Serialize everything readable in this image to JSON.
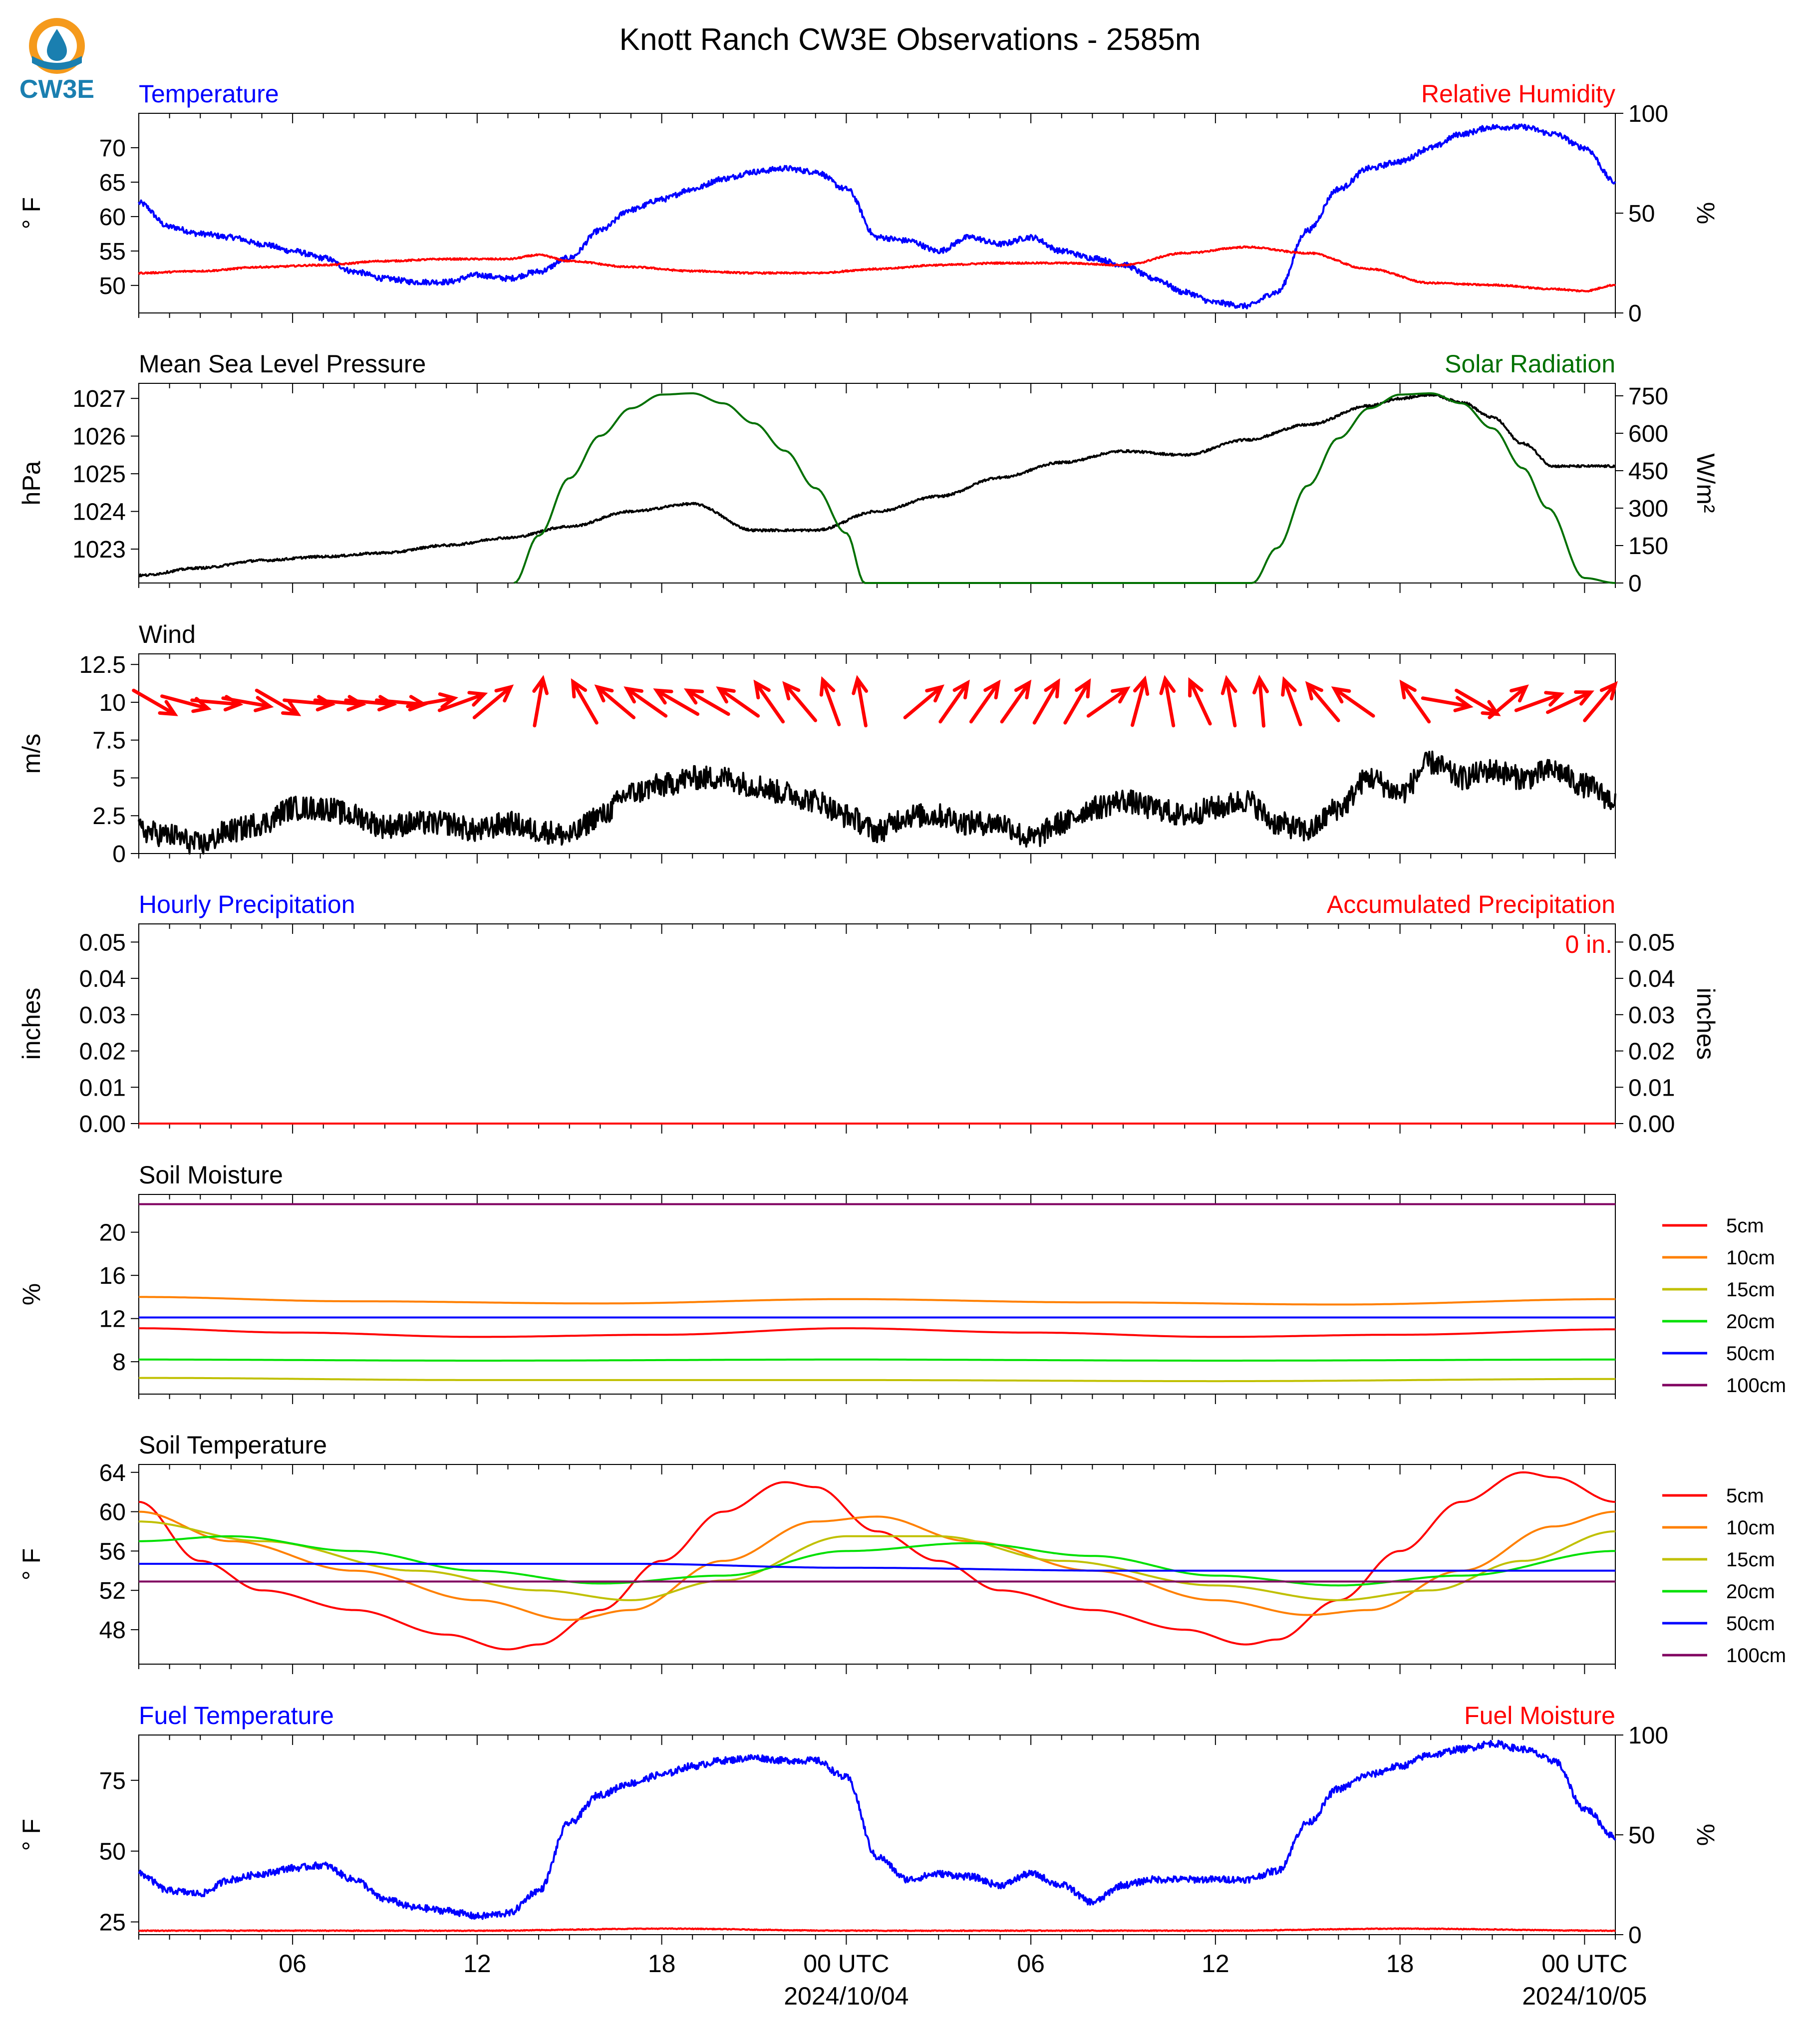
{
  "figure": {
    "title": "Knott Ranch CW3E Observations - 2585m",
    "logo_text": "CW3E",
    "x_ticks": [
      "06",
      "12",
      "18",
      "00 UTC",
      "06",
      "12",
      "18",
      "00 UTC"
    ],
    "x_tick_hours": [
      6,
      12,
      18,
      24,
      30,
      36,
      42,
      48
    ],
    "date_labels": [
      {
        "hour": 24,
        "text": "2024/10/04"
      },
      {
        "hour": 48,
        "text": "2024/10/05"
      }
    ],
    "x_range_hours": [
      1,
      49
    ]
  },
  "colors": {
    "blue": "#0000ff",
    "red": "#ff0000",
    "green": "#007000",
    "black": "#000000",
    "orange": "#ff8000",
    "olive": "#c0c000",
    "lime": "#00e000",
    "purple": "#800060"
  },
  "chart_data": [
    {
      "type": "line",
      "name": "temperature_humidity",
      "title_left": "Temperature",
      "title_right": "Relative Humidity",
      "ylabel_left": "° F",
      "ylabel_right": "%",
      "ylim_left": [
        46,
        75
      ],
      "ylim_right": [
        0,
        100
      ],
      "yticks_left": [
        50,
        55,
        60,
        65,
        70
      ],
      "yticks_right": [
        0,
        50,
        100
      ],
      "series": [
        {
          "axis": "left",
          "color": "blue",
          "x": [
            1,
            2,
            3,
            4,
            5,
            6,
            7,
            8,
            9,
            10,
            11,
            12,
            13,
            14,
            15,
            16,
            17,
            18,
            19,
            20,
            21,
            22,
            23,
            24,
            25,
            26,
            27,
            28,
            29,
            30,
            31,
            32,
            33,
            34,
            35,
            36,
            37,
            38,
            39,
            40,
            41,
            42,
            43,
            44,
            45,
            46,
            47,
            48,
            49
          ],
          "values": [
            62,
            58.5,
            57.5,
            57,
            56,
            55,
            54,
            52,
            51,
            50.5,
            50.5,
            51.5,
            51,
            52,
            54,
            58,
            61,
            62.5,
            64,
            65.5,
            66.5,
            67,
            66.5,
            64,
            57,
            56.5,
            55,
            57,
            56,
            57,
            55,
            54,
            53,
            51,
            49,
            47.5,
            47,
            49,
            58,
            64,
            67,
            68,
            70,
            72,
            73,
            73,
            72,
            70,
            65
          ]
        },
        {
          "axis": "right",
          "color": "red",
          "x": [
            1,
            3,
            5,
            7,
            9,
            11,
            13,
            14,
            15,
            17,
            19,
            21,
            23,
            25,
            27,
            29,
            31,
            33,
            35,
            37,
            39,
            41,
            43,
            45,
            47,
            48,
            49
          ],
          "values": [
            20,
            21,
            23,
            24,
            26,
            27,
            27,
            29,
            26,
            23,
            21,
            20,
            20,
            22,
            24,
            25,
            25,
            24,
            30,
            33,
            30,
            22,
            15,
            14,
            12,
            11,
            14
          ]
        }
      ]
    },
    {
      "type": "line",
      "name": "pressure_solar",
      "title_left": "Mean Sea Level Pressure",
      "title_right": "Solar Radiation",
      "ylabel_left": "hPa",
      "ylabel_right": "W/m²",
      "ylim_left": [
        1022.1,
        1027.4
      ],
      "ylim_right": [
        0,
        800
      ],
      "yticks_left": [
        1023,
        1024,
        1025,
        1026,
        1027
      ],
      "yticks_right": [
        0,
        150,
        300,
        450,
        600,
        750
      ],
      "series": [
        {
          "axis": "left",
          "color": "black",
          "x": [
            1,
            3,
            5,
            7,
            9,
            11,
            13,
            15,
            17,
            19,
            21,
            23,
            25,
            27,
            29,
            31,
            33,
            35,
            37,
            39,
            41,
            42,
            43,
            44,
            45,
            46,
            47,
            48,
            49
          ],
          "values": [
            1022.3,
            1022.5,
            1022.7,
            1022.8,
            1022.9,
            1023.1,
            1023.3,
            1023.6,
            1024,
            1024.2,
            1023.5,
            1023.5,
            1024,
            1024.4,
            1024.9,
            1025.3,
            1025.6,
            1025.5,
            1025.9,
            1026.3,
            1026.8,
            1027,
            1027.1,
            1026.9,
            1026.5,
            1025.8,
            1025.2,
            1025.2,
            1025.2
          ]
        },
        {
          "axis": "right",
          "color": "green",
          "x": [
            13.2,
            14,
            15,
            16,
            17,
            18,
            19,
            20,
            21,
            22,
            23,
            24,
            24.6,
            37.2,
            38,
            39,
            40,
            41,
            42,
            43,
            44,
            45,
            46,
            46.8,
            48,
            49
          ],
          "values": [
            0,
            190,
            420,
            590,
            700,
            755,
            760,
            720,
            640,
            530,
            380,
            200,
            0,
            0,
            140,
            390,
            580,
            700,
            755,
            760,
            720,
            620,
            460,
            300,
            20,
            0
          ]
        }
      ]
    },
    {
      "type": "line",
      "name": "wind",
      "title_left": "Wind",
      "ylabel_left": "m/s",
      "ylim_left": [
        0,
        13.2
      ],
      "yticks_left": [
        0.0,
        2.5,
        5.0,
        7.5,
        10.0,
        12.5
      ],
      "series": [
        {
          "axis": "left",
          "color": "black",
          "x": [
            1,
            2,
            3,
            4,
            5,
            6,
            7,
            8,
            9,
            10,
            11,
            12,
            13,
            14,
            15,
            16,
            17,
            18,
            19,
            20,
            21,
            22,
            23,
            24,
            25,
            26,
            27,
            28,
            29,
            30,
            31,
            32,
            33,
            34,
            35,
            36,
            37,
            38,
            39,
            40,
            41,
            42,
            43,
            44,
            45,
            46,
            47,
            48,
            49
          ],
          "values": [
            1.5,
            1.2,
            0.6,
            1.5,
            2,
            3,
            3,
            2.5,
            1.8,
            2,
            2,
            1.5,
            2,
            1.5,
            1.2,
            2.5,
            4,
            4.5,
            5,
            5,
            4.5,
            4,
            3.5,
            2.5,
            1.5,
            2.5,
            2.5,
            2,
            2,
            1,
            2,
            3,
            3.5,
            3,
            2.5,
            3,
            3.5,
            2,
            1.5,
            3,
            5,
            4,
            6,
            5,
            5.5,
            5,
            5.5,
            4.5,
            3.5
          ]
        }
      ],
      "barbs_hours": [
        1.5,
        2.5,
        3.5,
        4.5,
        5.5,
        6.5,
        7.5,
        8.5,
        9.5,
        10.5,
        11.5,
        12.5,
        14,
        15.5,
        16.5,
        17.5,
        18.5,
        19.5,
        20.5,
        21.5,
        22.5,
        23.5,
        24.5,
        26.5,
        27.5,
        28.5,
        29.5,
        30.5,
        31.5,
        32.5,
        33.5,
        34.5,
        35.5,
        36.5,
        37.5,
        38.5,
        39.5,
        40.5,
        42.5,
        43.5,
        44.5,
        45.5,
        46.5,
        47.5,
        48.5
      ],
      "barbs_dir_deg": [
        300,
        285,
        275,
        280,
        300,
        275,
        275,
        275,
        275,
        260,
        250,
        230,
        190,
        150,
        130,
        125,
        120,
        120,
        125,
        145,
        140,
        160,
        170,
        230,
        215,
        215,
        215,
        210,
        210,
        235,
        195,
        170,
        155,
        170,
        175,
        160,
        140,
        125,
        145,
        280,
        300,
        230,
        250,
        245,
        220
      ]
    },
    {
      "type": "line",
      "name": "precipitation",
      "title_left": "Hourly Precipitation",
      "title_right": "Accumulated Precipitation",
      "annotation": "0 in.",
      "ylabel_left": "inches",
      "ylabel_right": "inches",
      "ylim_left": [
        0,
        0.055
      ],
      "ylim_right": [
        0,
        0.055
      ],
      "yticks_left": [
        0.0,
        0.01,
        0.02,
        0.03,
        0.04,
        0.05
      ],
      "yticks_right": [
        0.0,
        0.01,
        0.02,
        0.03,
        0.04,
        0.05
      ],
      "series": [
        {
          "axis": "left",
          "color": "red",
          "x": [
            1,
            49
          ],
          "values": [
            0,
            0
          ]
        }
      ]
    },
    {
      "type": "line",
      "name": "soil_moisture",
      "title_left": "Soil Moisture",
      "ylabel_left": "%",
      "ylim_left": [
        5,
        23.5
      ],
      "yticks_left": [
        8,
        12,
        16,
        20
      ],
      "legend": [
        "5cm",
        "10cm",
        "15cm",
        "20cm",
        "50cm",
        "100cm"
      ],
      "series": [
        {
          "name": "5cm",
          "color": "red",
          "x": [
            1,
            6,
            12,
            18,
            24,
            30,
            36,
            42,
            49
          ],
          "values": [
            11.1,
            10.7,
            10.3,
            10.5,
            11.1,
            10.7,
            10.3,
            10.5,
            11.0
          ]
        },
        {
          "name": "10cm",
          "color": "orange",
          "x": [
            1,
            8,
            16,
            24,
            32,
            40,
            49
          ],
          "values": [
            14.0,
            13.6,
            13.4,
            13.8,
            13.5,
            13.3,
            13.8
          ]
        },
        {
          "name": "15cm",
          "color": "olive",
          "x": [
            1,
            12,
            24,
            36,
            49
          ],
          "values": [
            6.5,
            6.3,
            6.3,
            6.2,
            6.4
          ]
        },
        {
          "name": "20cm",
          "color": "lime",
          "x": [
            1,
            12,
            24,
            36,
            49
          ],
          "values": [
            8.2,
            8.1,
            8.2,
            8.1,
            8.2
          ]
        },
        {
          "name": "50cm",
          "color": "blue",
          "x": [
            1,
            24,
            49
          ],
          "values": [
            12.1,
            12.1,
            12.1
          ]
        },
        {
          "name": "100cm",
          "color": "purple",
          "x": [
            1,
            24,
            49
          ],
          "values": [
            22.6,
            22.6,
            22.6
          ]
        }
      ]
    },
    {
      "type": "line",
      "name": "soil_temperature",
      "title_left": "Soil Temperature",
      "ylabel_left": "° F",
      "ylim_left": [
        44.5,
        64.8
      ],
      "yticks_left": [
        48,
        52,
        56,
        60,
        64
      ],
      "legend": [
        "5cm",
        "10cm",
        "15cm",
        "20cm",
        "50cm",
        "100cm"
      ],
      "series": [
        {
          "name": "5cm",
          "color": "red",
          "x": [
            1,
            3,
            5,
            8,
            11,
            13,
            14,
            16,
            18,
            20,
            22,
            23,
            25,
            27,
            29,
            32,
            35,
            37,
            38,
            40,
            42,
            44,
            46,
            47,
            49
          ],
          "values": [
            61,
            55,
            52,
            50,
            47.5,
            46,
            46.5,
            50,
            55,
            60,
            63,
            62.5,
            58,
            55,
            52,
            50,
            48,
            46.5,
            47,
            51,
            56,
            61,
            64,
            63.5,
            61
          ]
        },
        {
          "name": "10cm",
          "color": "orange",
          "x": [
            1,
            4,
            8,
            12,
            15,
            17,
            20,
            23,
            25,
            28,
            32,
            36,
            39,
            41,
            44,
            47,
            49
          ],
          "values": [
            60,
            57,
            54,
            51,
            49,
            50,
            55,
            59,
            59.5,
            57,
            54,
            51,
            49.5,
            50,
            54,
            58.5,
            60
          ]
        },
        {
          "name": "15cm",
          "color": "olive",
          "x": [
            1,
            5,
            10,
            14,
            17,
            20,
            24,
            27,
            31,
            36,
            40,
            43,
            46,
            49
          ],
          "values": [
            59,
            57,
            54,
            52,
            51,
            53,
            57.5,
            57.5,
            55,
            52.5,
            51,
            52,
            55,
            58
          ]
        },
        {
          "name": "20cm",
          "color": "lime",
          "x": [
            1,
            4,
            8,
            12,
            16,
            20,
            24,
            28,
            32,
            36,
            40,
            44,
            49
          ],
          "values": [
            57,
            57.5,
            56,
            54,
            52.7,
            53.5,
            56,
            56.8,
            55.5,
            53.5,
            52.5,
            53.5,
            56
          ]
        },
        {
          "name": "50cm",
          "color": "blue",
          "x": [
            1,
            17,
            24,
            33,
            49
          ],
          "values": [
            54.7,
            54.7,
            54.3,
            54.0,
            54.0
          ]
        },
        {
          "name": "100cm",
          "color": "purple",
          "x": [
            1,
            24,
            49
          ],
          "values": [
            52.9,
            52.9,
            52.9
          ]
        }
      ]
    },
    {
      "type": "line",
      "name": "fuel",
      "title_left": "Fuel Temperature",
      "title_right": "Fuel Moisture",
      "ylabel_left": "° F",
      "ylabel_right": "%",
      "ylim_left": [
        20.5,
        91
      ],
      "ylim_right": [
        0,
        100
      ],
      "yticks_left": [
        25,
        50,
        75
      ],
      "yticks_right": [
        0,
        50,
        100
      ],
      "series": [
        {
          "axis": "left",
          "color": "blue",
          "x": [
            1,
            2,
            3,
            4,
            5,
            6,
            7,
            8,
            9,
            10,
            11,
            12,
            13,
            14,
            15,
            16,
            17,
            18,
            19,
            20,
            21,
            22,
            23,
            24,
            25,
            26,
            27,
            28,
            29,
            30,
            31,
            32,
            33,
            34,
            35,
            36,
            37,
            38,
            39,
            40,
            41,
            42,
            43,
            44,
            45,
            46,
            47,
            48,
            49
          ],
          "values": [
            42,
            36,
            35,
            40,
            42,
            44,
            45,
            40,
            33,
            30,
            29,
            27,
            28,
            36,
            60,
            70,
            74,
            77,
            80,
            82,
            83,
            82,
            82,
            76,
            48,
            40,
            42,
            41,
            38,
            42,
            38,
            32,
            38,
            40,
            40,
            40,
            40,
            43,
            60,
            72,
            77,
            80,
            84,
            86,
            88,
            86,
            82,
            65,
            55
          ]
        },
        {
          "axis": "right",
          "color": "red",
          "x": [
            1,
            6,
            12,
            18,
            24,
            30,
            36,
            42,
            49
          ],
          "values": [
            2,
            2,
            2,
            3,
            2,
            2,
            2,
            3,
            2
          ]
        }
      ]
    }
  ]
}
